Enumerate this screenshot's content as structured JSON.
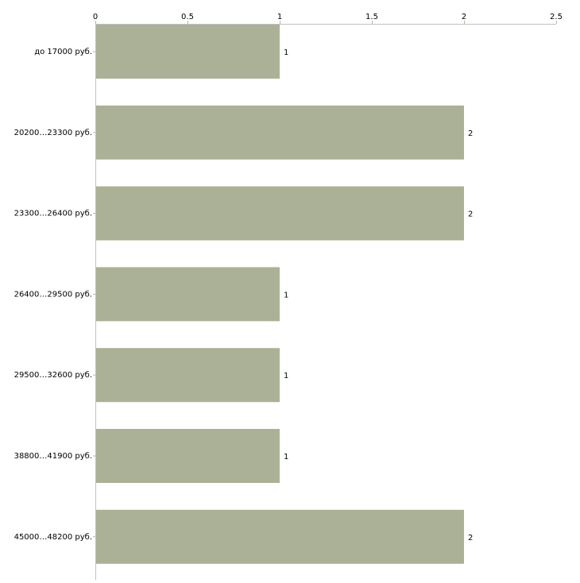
{
  "chart_data": {
    "type": "bar",
    "orientation": "horizontal",
    "categories": [
      "до 17000 руб.",
      "20200…23300 руб.",
      "23300…26400 руб.",
      "26400…29500 руб.",
      "29500…32600 руб.",
      "38800…41900 руб.",
      "45000…48200 руб."
    ],
    "values": [
      1,
      2,
      2,
      1,
      1,
      1,
      2
    ],
    "data_labels": [
      "1",
      "2",
      "2",
      "1",
      "1",
      "1",
      "2"
    ],
    "xlim": [
      0,
      2.5
    ],
    "xticks": [
      0,
      0.5,
      1,
      1.5,
      2,
      2.5
    ],
    "xtick_labels": [
      "0",
      "0.5",
      "1",
      "1.5",
      "2",
      "2.5"
    ],
    "axis_position": "top",
    "title": "",
    "xlabel": "",
    "ylabel": "",
    "bar_color": "#abb196",
    "tick_color": "#b5b88a",
    "axis_color": "#c0c0c0"
  }
}
